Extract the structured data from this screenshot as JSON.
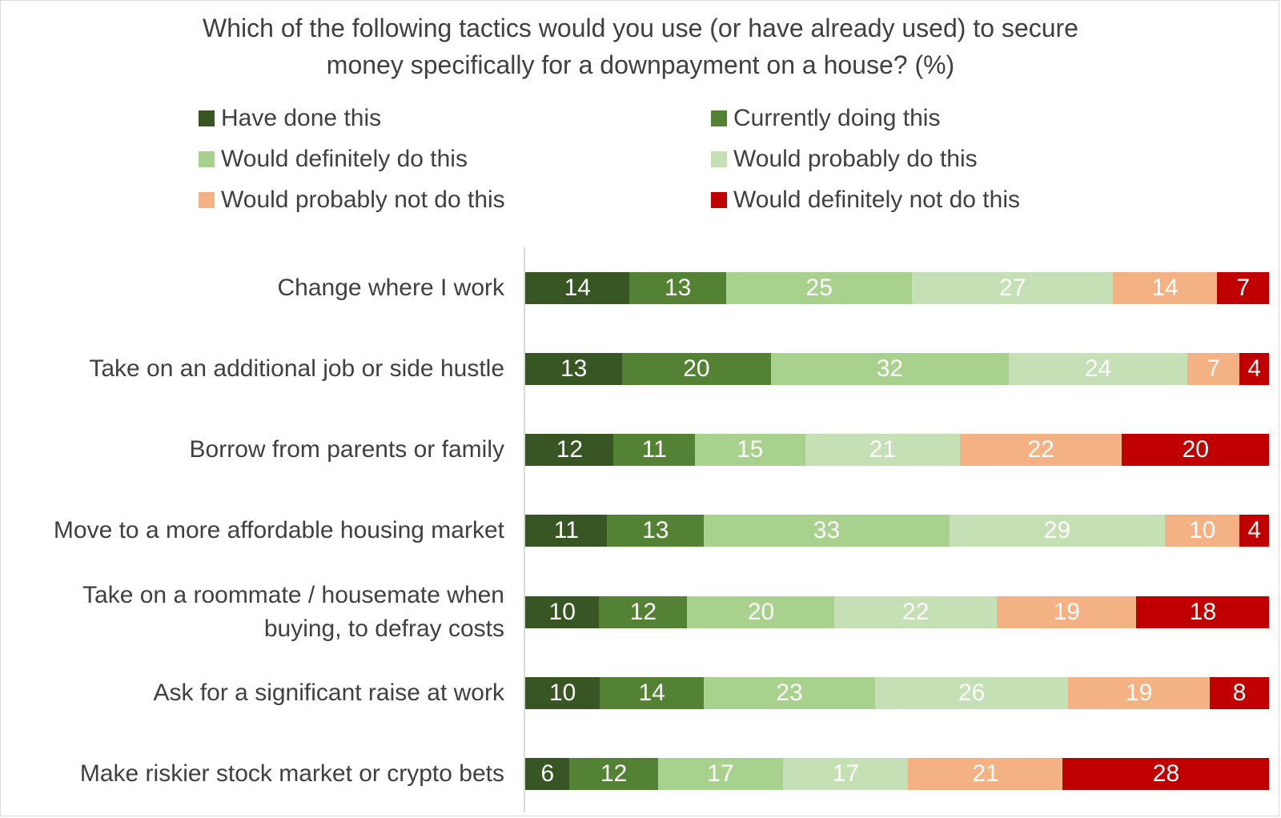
{
  "chart_data": {
    "type": "bar",
    "orientation": "horizontal",
    "stacked": true,
    "title_lines": [
      "Which of the following tactics would you use (or have already used) to secure",
      "money specifically for a downpayment on a house? (%)"
    ],
    "categories": [
      "Change where I work",
      "Take on an additional job or side hustle",
      "Borrow from parents or family",
      "Move to a more affordable housing market",
      "Take on a roommate / housemate when buying, to defray costs",
      "Ask for a significant raise at work",
      "Make riskier stock market or crypto bets"
    ],
    "category_label_lines": [
      [
        "Change where I work"
      ],
      [
        "Take on an additional job or side hustle"
      ],
      [
        "Borrow from parents or family"
      ],
      [
        "Move to a more affordable housing market"
      ],
      [
        "Take on a roommate / housemate when",
        "buying, to defray costs"
      ],
      [
        "Ask for a significant raise at work"
      ],
      [
        "Make riskier stock market or crypto bets"
      ]
    ],
    "series": [
      {
        "name": "Have done this",
        "color": "#375623",
        "values": [
          14,
          13,
          12,
          11,
          10,
          10,
          6
        ]
      },
      {
        "name": "Currently doing this",
        "color": "#548235",
        "values": [
          13,
          20,
          11,
          13,
          12,
          14,
          12
        ]
      },
      {
        "name": "Would definitely do this",
        "color": "#a9d18e",
        "values": [
          25,
          32,
          15,
          33,
          20,
          23,
          17
        ]
      },
      {
        "name": "Would probably do this",
        "color": "#c5e0b4",
        "values": [
          27,
          24,
          21,
          29,
          22,
          26,
          17
        ]
      },
      {
        "name": "Would probably not do this",
        "color": "#f4b183",
        "values": [
          14,
          7,
          22,
          10,
          19,
          19,
          21
        ]
      },
      {
        "name": "Would definitely not do this",
        "color": "#c00000",
        "values": [
          7,
          4,
          20,
          4,
          18,
          8,
          28
        ]
      }
    ],
    "legend": "top",
    "xlabel": "",
    "ylabel": "",
    "grid": false
  }
}
